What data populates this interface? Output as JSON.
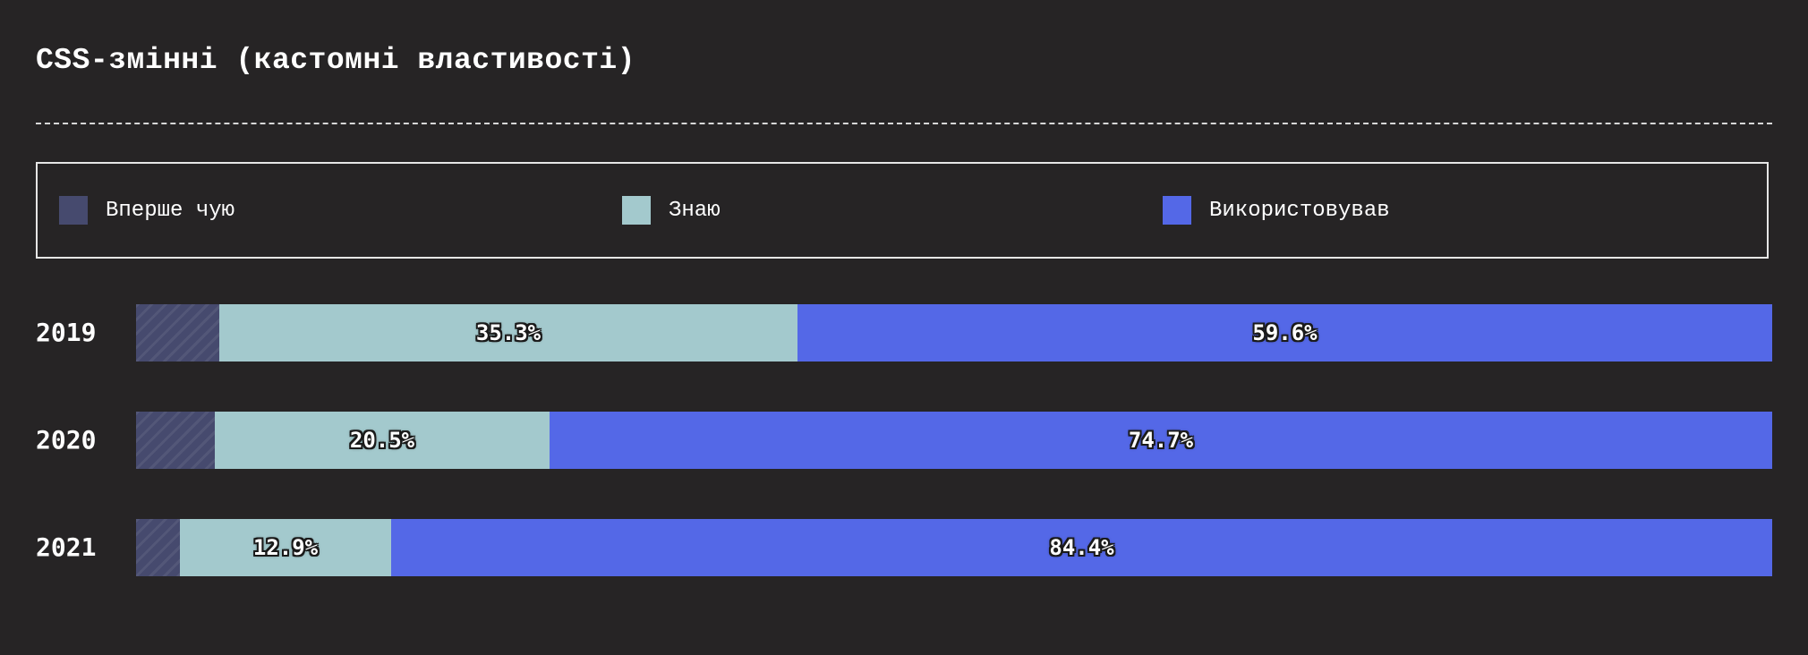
{
  "chart_data": {
    "type": "bar",
    "orientation": "horizontal",
    "stacked": true,
    "title": "CSS-змінні (кастомні властивості)",
    "categories": [
      "2019",
      "2020",
      "2021"
    ],
    "series": [
      {
        "name": "Вперше чую",
        "values": [
          5.1,
          4.8,
          2.7
        ],
        "color": "#464a6e",
        "value_labels": [
          "",
          "",
          ""
        ]
      },
      {
        "name": "Знаю",
        "values": [
          35.3,
          20.5,
          12.9
        ],
        "color": "#a3c9cd",
        "value_labels": [
          "35.3%",
          "20.5%",
          "12.9%"
        ]
      },
      {
        "name": "Використовував",
        "values": [
          59.6,
          74.7,
          84.4
        ],
        "color": "#5468e7",
        "value_labels": [
          "59.6%",
          "74.7%",
          "84.4%"
        ]
      }
    ],
    "xlim": [
      0,
      100
    ],
    "unit": "%",
    "grid": false,
    "legend": "top"
  }
}
